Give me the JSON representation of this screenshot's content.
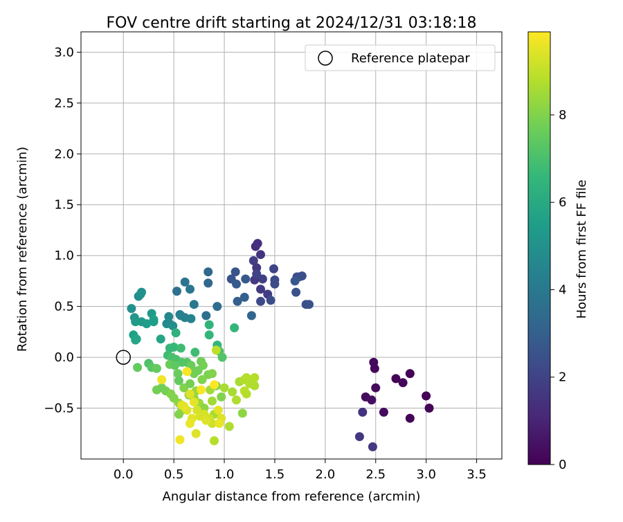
{
  "chart_data": {
    "type": "scatter",
    "title": "FOV centre drift starting at 2024/12/31 03:18:18",
    "xlabel": "Angular distance from reference (arcmin)",
    "ylabel": "Rotation from reference (arcmin)",
    "xlim": [
      -0.42,
      3.75
    ],
    "ylim": [
      -1.0,
      3.2
    ],
    "xticks": [
      0.0,
      0.5,
      1.0,
      1.5,
      2.0,
      2.5,
      3.0,
      3.5
    ],
    "xtick_labels": [
      "0.0",
      "0.5",
      "1.0",
      "1.5",
      "2.0",
      "2.5",
      "3.0",
      "3.5"
    ],
    "yticks": [
      -0.5,
      0.0,
      0.5,
      1.0,
      1.5,
      2.0,
      2.5,
      3.0
    ],
    "ytick_labels": [
      "−0.5",
      "0.0",
      "0.5",
      "1.0",
      "1.5",
      "2.0",
      "2.5",
      "3.0"
    ],
    "grid": true,
    "legend": {
      "position": "top-right",
      "entries": [
        {
          "label": "Reference platepar",
          "marker": "open-circle",
          "x": 0.0,
          "y": 0.0
        }
      ]
    },
    "colorbar": {
      "label": "Hours from first FF file",
      "colormap": "viridis",
      "range": [
        0,
        9.9
      ],
      "ticks": [
        0,
        2,
        4,
        6,
        8
      ],
      "tick_labels": [
        "0",
        "2",
        "4",
        "6",
        "8"
      ]
    },
    "colormap_stops": [
      "#440154",
      "#482878",
      "#3e4989",
      "#31688e",
      "#26828e",
      "#1f9e89",
      "#35b779",
      "#6ece58",
      "#b5de2b",
      "#fde725"
    ],
    "series": [
      {
        "color_value": "hours",
        "points": [
          [
            2.48,
            -0.05,
            0.2
          ],
          [
            2.49,
            -0.11,
            0.2
          ],
          [
            2.5,
            -0.3,
            0.25
          ],
          [
            2.4,
            -0.39,
            0.3
          ],
          [
            2.46,
            -0.42,
            0.4
          ],
          [
            2.58,
            -0.54,
            0.3
          ],
          [
            2.7,
            -0.21,
            0.1
          ],
          [
            2.77,
            -0.25,
            0.15
          ],
          [
            2.84,
            -0.16,
            0.05
          ],
          [
            2.84,
            -0.6,
            0.1
          ],
          [
            3.0,
            -0.38,
            0.05
          ],
          [
            3.03,
            -0.5,
            0.1
          ],
          [
            2.37,
            -0.54,
            1.5
          ],
          [
            2.34,
            -0.78,
            1.6
          ],
          [
            2.47,
            -0.88,
            1.7
          ],
          [
            1.31,
            1.09,
            1.3
          ],
          [
            1.33,
            1.12,
            1.4
          ],
          [
            1.36,
            1.01,
            1.5
          ],
          [
            1.29,
            0.95,
            1.8
          ],
          [
            1.32,
            0.88,
            1.6
          ],
          [
            1.38,
            0.77,
            1.9
          ],
          [
            1.3,
            0.76,
            1.7
          ],
          [
            1.32,
            0.82,
            2.0
          ],
          [
            1.36,
            0.67,
            1.7
          ],
          [
            1.43,
            0.62,
            1.8
          ],
          [
            1.49,
            0.87,
            2.0
          ],
          [
            1.5,
            0.76,
            2.2
          ],
          [
            1.5,
            0.72,
            2.3
          ],
          [
            1.36,
            0.55,
            2.2
          ],
          [
            1.46,
            0.56,
            2.3
          ],
          [
            1.72,
            0.79,
            2.2
          ],
          [
            1.74,
            0.79,
            2.4
          ],
          [
            1.77,
            0.8,
            2.4
          ],
          [
            1.7,
            0.75,
            2.7
          ],
          [
            1.71,
            0.64,
            2.5
          ],
          [
            1.81,
            0.52,
            2.4
          ],
          [
            1.84,
            0.52,
            2.5
          ],
          [
            1.07,
            0.77,
            2.6
          ],
          [
            1.11,
            0.84,
            2.6
          ],
          [
            1.12,
            0.72,
            2.8
          ],
          [
            1.21,
            0.77,
            2.8
          ],
          [
            1.2,
            0.59,
            3.0
          ],
          [
            1.13,
            0.55,
            3.0
          ],
          [
            1.27,
            0.41,
            3.2
          ],
          [
            0.84,
            0.84,
            3.3
          ],
          [
            0.84,
            0.73,
            3.3
          ],
          [
            0.93,
            0.5,
            3.5
          ],
          [
            0.82,
            0.41,
            3.6
          ],
          [
            0.61,
            0.74,
            3.8
          ],
          [
            0.53,
            0.65,
            3.7
          ],
          [
            0.66,
            0.67,
            3.9
          ],
          [
            0.7,
            0.52,
            4.0
          ],
          [
            0.57,
            0.41,
            4.2
          ],
          [
            0.61,
            0.39,
            4.3
          ],
          [
            0.67,
            0.38,
            4.4
          ],
          [
            0.56,
            0.42,
            4.3
          ],
          [
            0.45,
            0.4,
            4.6
          ],
          [
            0.43,
            0.33,
            4.8
          ],
          [
            0.45,
            0.34,
            4.7
          ],
          [
            0.49,
            0.31,
            4.9
          ],
          [
            0.08,
            0.48,
            5.0
          ],
          [
            0.15,
            0.6,
            4.8
          ],
          [
            0.17,
            0.62,
            4.9
          ],
          [
            0.18,
            0.64,
            5.0
          ],
          [
            0.11,
            0.39,
            5.2
          ],
          [
            0.12,
            0.35,
            5.3
          ],
          [
            0.18,
            0.35,
            5.4
          ],
          [
            0.23,
            0.33,
            5.5
          ],
          [
            0.28,
            0.43,
            5.4
          ],
          [
            0.3,
            0.37,
            5.6
          ],
          [
            0.3,
            0.35,
            5.5
          ],
          [
            0.37,
            0.18,
            5.8
          ],
          [
            0.1,
            0.22,
            5.6
          ],
          [
            0.12,
            0.17,
            5.9
          ],
          [
            0.13,
            0.18,
            5.8
          ],
          [
            0.52,
            0.24,
            6.3
          ],
          [
            0.85,
            0.32,
            6.4
          ],
          [
            0.85,
            0.22,
            6.5
          ],
          [
            0.93,
            0.12,
            6.5
          ],
          [
            1.1,
            0.29,
            6.5
          ],
          [
            0.46,
            0.09,
            6.6
          ],
          [
            0.5,
            0.1,
            6.6
          ],
          [
            0.57,
            0.09,
            6.8
          ],
          [
            0.44,
            0.02,
            6.8
          ],
          [
            0.48,
            0.0,
            7.0
          ],
          [
            0.52,
            -0.02,
            7.0
          ],
          [
            0.58,
            -0.05,
            7.2
          ],
          [
            0.63,
            -0.05,
            7.2
          ],
          [
            0.71,
            0.05,
            6.8
          ],
          [
            0.95,
            0.06,
            7.0
          ],
          [
            0.98,
            0.0,
            7.2
          ],
          [
            0.25,
            -0.06,
            7.1
          ],
          [
            0.28,
            -0.1,
            7.3
          ],
          [
            0.14,
            -0.1,
            7.5
          ],
          [
            0.33,
            -0.11,
            7.5
          ],
          [
            0.46,
            -0.07,
            7.6
          ],
          [
            0.51,
            -0.08,
            7.4
          ],
          [
            0.54,
            -0.16,
            7.6
          ],
          [
            0.55,
            -0.23,
            7.5
          ],
          [
            0.67,
            -0.08,
            7.6
          ],
          [
            0.7,
            -0.16,
            7.8
          ],
          [
            0.77,
            -0.04,
            7.7
          ],
          [
            0.79,
            -0.08,
            7.8
          ],
          [
            0.74,
            -0.13,
            7.7
          ],
          [
            0.84,
            -0.17,
            7.9
          ],
          [
            0.88,
            -0.16,
            8.0
          ],
          [
            0.92,
            -0.28,
            8.0
          ],
          [
            0.97,
            -0.39,
            8.0
          ],
          [
            0.78,
            -0.22,
            8.0
          ],
          [
            0.6,
            -0.3,
            8.0
          ],
          [
            0.66,
            -0.26,
            7.8
          ],
          [
            0.33,
            -0.32,
            7.8
          ],
          [
            0.38,
            -0.3,
            7.7
          ],
          [
            0.42,
            -0.33,
            7.8
          ],
          [
            0.47,
            -0.36,
            8.0
          ],
          [
            0.5,
            -0.4,
            8.0
          ],
          [
            0.55,
            -0.45,
            8.2
          ],
          [
            0.55,
            -0.56,
            8.0
          ],
          [
            0.58,
            -0.52,
            8.1
          ],
          [
            0.65,
            -0.37,
            8.2
          ],
          [
            0.7,
            -0.4,
            8.3
          ],
          [
            0.72,
            -0.33,
            8.3
          ],
          [
            0.75,
            -0.45,
            8.4
          ],
          [
            0.8,
            -0.5,
            8.2
          ],
          [
            0.86,
            -0.32,
            8.5
          ],
          [
            0.88,
            -0.43,
            8.5
          ],
          [
            1.0,
            -0.3,
            8.6
          ],
          [
            1.08,
            -0.34,
            8.6
          ],
          [
            1.12,
            -0.42,
            8.7
          ],
          [
            1.18,
            -0.55,
            8.2
          ],
          [
            1.15,
            -0.24,
            8.6
          ],
          [
            1.2,
            -0.22,
            8.7
          ],
          [
            1.22,
            -0.2,
            8.8
          ],
          [
            1.25,
            -0.26,
            8.8
          ],
          [
            1.28,
            -0.24,
            8.7
          ],
          [
            1.3,
            -0.2,
            8.8
          ],
          [
            1.3,
            -0.28,
            8.7
          ],
          [
            1.2,
            -0.33,
            8.9
          ],
          [
            1.22,
            -0.36,
            8.8
          ],
          [
            1.05,
            -0.68,
            8.7
          ],
          [
            0.9,
            -0.82,
            8.8
          ],
          [
            0.9,
            -0.56,
            8.6
          ],
          [
            0.92,
            0.07,
            8.9
          ],
          [
            0.85,
            -0.6,
            9.2
          ],
          [
            0.88,
            -0.65,
            9.2
          ],
          [
            0.8,
            -0.56,
            9.3
          ],
          [
            0.82,
            -0.62,
            9.4
          ],
          [
            0.76,
            -0.58,
            9.3
          ],
          [
            0.72,
            -0.75,
            9.4
          ],
          [
            0.68,
            -0.6,
            9.5
          ],
          [
            0.66,
            -0.65,
            9.6
          ],
          [
            0.63,
            -0.52,
            9.4
          ],
          [
            0.6,
            -0.48,
            9.6
          ],
          [
            0.58,
            -0.47,
            9.5
          ],
          [
            0.56,
            -0.81,
            9.7
          ],
          [
            0.7,
            -0.44,
            9.5
          ],
          [
            0.73,
            -0.52,
            9.3
          ],
          [
            0.77,
            -0.32,
            9.8
          ],
          [
            0.38,
            -0.22,
            9.7
          ],
          [
            0.63,
            -0.14,
            9.8
          ],
          [
            0.66,
            -0.36,
            9.4
          ],
          [
            0.9,
            -0.27,
            9.9
          ],
          [
            0.94,
            -0.52,
            9.5
          ],
          [
            0.97,
            -0.6,
            9.4
          ],
          [
            0.95,
            -0.65,
            9.6
          ]
        ]
      }
    ]
  }
}
